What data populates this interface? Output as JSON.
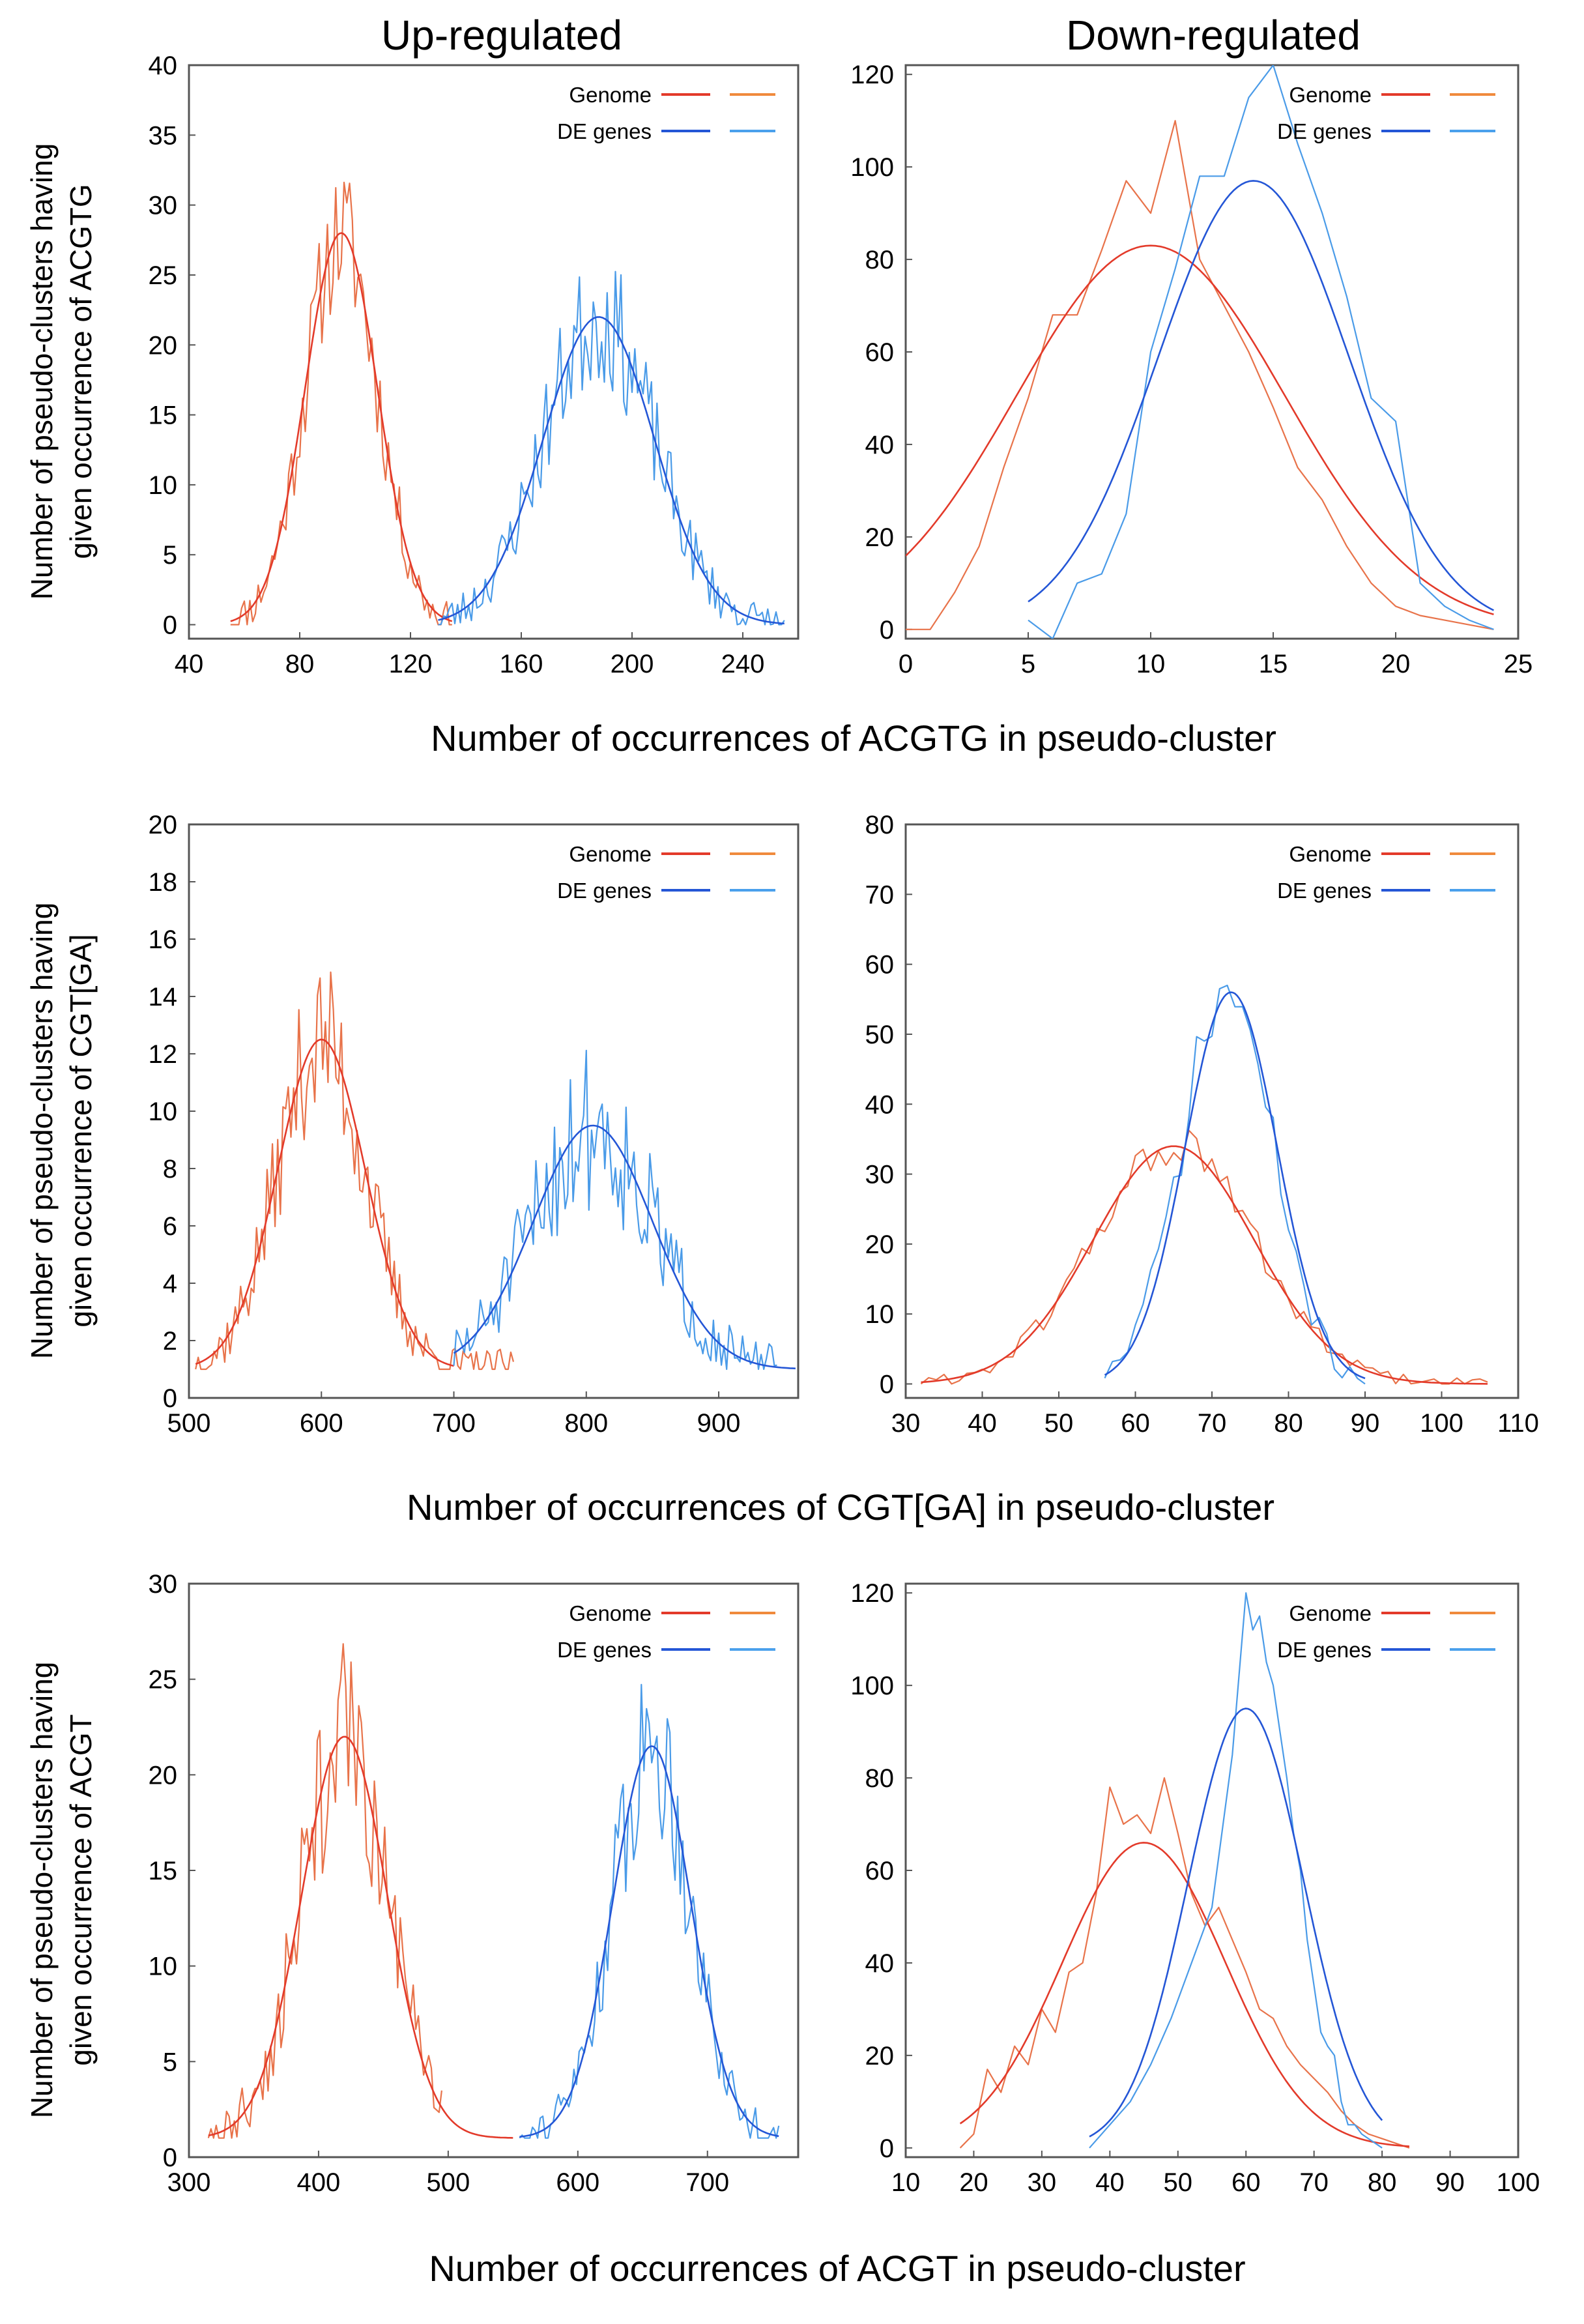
{
  "colors": {
    "genome_raw": "#e8734a",
    "genome_fit": "#e33a2a",
    "de_raw": "#4a9be8",
    "de_fit": "#2456d6",
    "legend_genome_left": "#e33a2a",
    "legend_genome_right": "#f08a3c",
    "legend_de_left": "#2456d6",
    "legend_de_right": "#4aa0ec"
  },
  "column_titles": [
    "Up-regulated",
    "Down-regulated"
  ],
  "chart_data": [
    {
      "type": "line",
      "row": 0,
      "col": 0,
      "xlim": [
        40,
        260
      ],
      "ylim": [
        -1,
        40
      ],
      "xticks": [
        40,
        80,
        120,
        160,
        200,
        240
      ],
      "yticks": [
        0,
        5,
        10,
        15,
        20,
        25,
        30,
        35,
        40
      ],
      "xlabel": "Number of occurrences of ACGTG in pseudo-cluster",
      "ylabel": [
        "Number of pseudo-clusters having",
        "given occurrence of ACGTG"
      ],
      "legend": [
        "Genome",
        "DE genes"
      ],
      "series": [
        {
          "name": "Genome",
          "kind": "noisy",
          "mean": 95,
          "sd": 13,
          "peak": 28,
          "start": 55,
          "end": 135,
          "step": 1,
          "noise": 5,
          "seed": 11
        },
        {
          "name": "Genome fit",
          "kind": "fit",
          "mean": 95,
          "sd": 13,
          "peak": 28,
          "start": 55,
          "end": 135
        },
        {
          "name": "DE genes",
          "kind": "noisy",
          "mean": 188,
          "sd": 20,
          "peak": 22,
          "start": 130,
          "end": 255,
          "step": 1,
          "noise": 5,
          "seed": 23
        },
        {
          "name": "DE genes fit",
          "kind": "fit",
          "mean": 188,
          "sd": 20,
          "peak": 22,
          "start": 130,
          "end": 255
        }
      ]
    },
    {
      "type": "line",
      "row": 0,
      "col": 1,
      "xlim": [
        0,
        25
      ],
      "ylim": [
        -2,
        122
      ],
      "xticks": [
        0,
        5,
        10,
        15,
        20,
        25
      ],
      "yticks": [
        0,
        20,
        40,
        60,
        80,
        100,
        120
      ],
      "xlabel": "Number of occurrences of ACGTG in pseudo-cluster",
      "ylabel": [],
      "legend": [
        "Genome",
        "DE genes"
      ],
      "series": [
        {
          "name": "Genome",
          "kind": "points",
          "x": [
            0,
            1,
            2,
            3,
            4,
            5,
            6,
            7,
            8,
            9,
            10,
            11,
            12,
            13,
            14,
            15,
            16,
            17,
            18,
            19,
            20,
            21,
            22,
            23,
            24
          ],
          "y": [
            0,
            0,
            8,
            18,
            35,
            50,
            68,
            68,
            82,
            97,
            90,
            110,
            80,
            70,
            60,
            48,
            35,
            28,
            18,
            10,
            5,
            3,
            2,
            1,
            0
          ]
        },
        {
          "name": "Genome fit",
          "kind": "fit",
          "mean": 10,
          "sd": 5.5,
          "peak": 83,
          "start": 0,
          "end": 24
        },
        {
          "name": "DE genes",
          "kind": "points",
          "x": [
            5,
            6,
            7,
            8,
            9,
            10,
            11,
            12,
            13,
            14,
            15,
            16,
            17,
            18,
            19,
            20,
            21,
            22,
            23,
            24
          ],
          "y": [
            2,
            -2,
            10,
            12,
            25,
            60,
            78,
            98,
            98,
            115,
            122,
            105,
            90,
            72,
            50,
            45,
            10,
            5,
            2,
            0
          ]
        },
        {
          "name": "DE genes fit",
          "kind": "fit",
          "mean": 14.2,
          "sd": 3.9,
          "peak": 97,
          "start": 5,
          "end": 24
        }
      ]
    },
    {
      "type": "line",
      "row": 1,
      "col": 0,
      "xlim": [
        500,
        960
      ],
      "ylim": [
        0,
        20
      ],
      "xticks": [
        500,
        600,
        700,
        800,
        900
      ],
      "yticks": [
        0,
        2,
        4,
        6,
        8,
        10,
        12,
        14,
        16,
        18,
        20
      ],
      "xlabel": "Number of occurrences of CGT[GA] in pseudo-cluster",
      "ylabel": [
        "Number of pseudo-clusters having",
        "given occurrence of CGT[GA]"
      ],
      "legend": [
        "Genome",
        "DE genes"
      ],
      "series": [
        {
          "name": "Genome",
          "kind": "noisy",
          "mean": 600,
          "sd": 33,
          "peak": 12.5,
          "start": 505,
          "end": 745,
          "step": 2,
          "noise": 2.8,
          "floor": 1,
          "seed": 37
        },
        {
          "name": "Genome fit",
          "kind": "fit",
          "mean": 600,
          "sd": 33,
          "peak": 12.5,
          "start": 505,
          "end": 700,
          "floor": 1
        },
        {
          "name": "DE genes",
          "kind": "noisy",
          "mean": 805,
          "sd": 45,
          "peak": 9.5,
          "start": 700,
          "end": 945,
          "step": 2,
          "noise": 3,
          "floor": 1,
          "seed": 51
        },
        {
          "name": "DE genes fit",
          "kind": "fit",
          "mean": 805,
          "sd": 45,
          "peak": 9.5,
          "start": 700,
          "end": 958,
          "floor": 1
        }
      ]
    },
    {
      "type": "line",
      "row": 1,
      "col": 1,
      "xlim": [
        30,
        110
      ],
      "ylim": [
        -2,
        80
      ],
      "xticks": [
        30,
        40,
        50,
        60,
        70,
        80,
        90,
        100,
        110
      ],
      "yticks": [
        0,
        10,
        20,
        30,
        40,
        50,
        60,
        70,
        80
      ],
      "xlabel": "Number of occurrences of CGT[GA] in pseudo-cluster",
      "ylabel": [],
      "legend": [
        "Genome",
        "DE genes"
      ],
      "series": [
        {
          "name": "Genome",
          "kind": "noisy",
          "mean": 65,
          "sd": 10.5,
          "peak": 34,
          "start": 32,
          "end": 106,
          "step": 1,
          "noise": 3.5,
          "seed": 61
        },
        {
          "name": "Genome fit",
          "kind": "fit",
          "mean": 65,
          "sd": 10.5,
          "peak": 34,
          "start": 32,
          "end": 106
        },
        {
          "name": "DE genes",
          "kind": "noisy",
          "mean": 72,
          "sd": 6,
          "peak": 56,
          "start": 56,
          "end": 90,
          "step": 1,
          "noise": 6,
          "seed": 71
        },
        {
          "name": "DE genes fit",
          "kind": "fit",
          "mean": 72.5,
          "sd": 6,
          "peak": 56,
          "start": 56,
          "end": 90
        }
      ]
    },
    {
      "type": "line",
      "row": 2,
      "col": 0,
      "xlim": [
        300,
        770
      ],
      "ylim": [
        0,
        30
      ],
      "xticks": [
        300,
        400,
        500,
        600,
        700
      ],
      "yticks": [
        0,
        5,
        10,
        15,
        20,
        25,
        30
      ],
      "xlabel": "Number of occurrences of ACGT in pseudo-cluster",
      "ylabel": [
        "Number of pseudo-clusters having",
        "given occurrence of ACGT"
      ],
      "legend": [
        "Genome",
        "DE genes"
      ],
      "series": [
        {
          "name": "Genome",
          "kind": "noisy",
          "mean": 420,
          "sd": 33,
          "peak": 22,
          "start": 315,
          "end": 495,
          "step": 2,
          "noise": 5,
          "floor": 1,
          "seed": 81
        },
        {
          "name": "Genome fit",
          "kind": "fit",
          "mean": 420,
          "sd": 33,
          "peak": 22,
          "start": 315,
          "end": 550,
          "floor": 1
        },
        {
          "name": "DE genes",
          "kind": "noisy",
          "mean": 657,
          "sd": 30,
          "peak": 21.5,
          "start": 555,
          "end": 755,
          "step": 2,
          "noise": 4.5,
          "floor": 1,
          "seed": 91
        },
        {
          "name": "DE genes fit",
          "kind": "fit",
          "mean": 657,
          "sd": 30,
          "peak": 21.5,
          "start": 555,
          "end": 755,
          "floor": 1
        }
      ]
    },
    {
      "type": "line",
      "row": 2,
      "col": 1,
      "xlim": [
        10,
        100
      ],
      "ylim": [
        -2,
        122
      ],
      "xticks": [
        10,
        20,
        30,
        40,
        50,
        60,
        70,
        80,
        90,
        100
      ],
      "yticks": [
        0,
        20,
        40,
        60,
        80,
        100,
        120
      ],
      "xlabel": "Number of occurrences of ACGT in pseudo-cluster",
      "ylabel": [],
      "legend": [
        "Genome",
        "DE genes"
      ],
      "series": [
        {
          "name": "Genome",
          "kind": "points",
          "x": [
            18,
            20,
            22,
            24,
            26,
            28,
            30,
            32,
            34,
            36,
            38,
            40,
            42,
            44,
            46,
            48,
            50,
            52,
            54,
            56,
            58,
            60,
            62,
            64,
            66,
            68,
            70,
            72,
            74,
            76,
            78,
            80,
            82,
            84
          ],
          "y": [
            0,
            3,
            17,
            12,
            22,
            18,
            30,
            25,
            38,
            40,
            55,
            78,
            70,
            72,
            68,
            80,
            68,
            55,
            48,
            52,
            45,
            38,
            30,
            28,
            22,
            18,
            15,
            12,
            8,
            5,
            3,
            2,
            1,
            0
          ]
        },
        {
          "name": "Genome fit",
          "kind": "fit",
          "mean": 45,
          "sd": 12,
          "peak": 66,
          "start": 18,
          "end": 84
        },
        {
          "name": "DE genes",
          "kind": "points",
          "x": [
            37,
            40,
            43,
            46,
            49,
            52,
            55,
            58,
            60,
            61,
            62,
            63,
            64,
            65,
            66,
            67,
            68,
            69,
            70,
            71,
            72,
            73,
            74,
            75,
            76,
            77,
            78,
            79,
            80
          ],
          "y": [
            0,
            5,
            10,
            18,
            28,
            40,
            52,
            85,
            120,
            112,
            115,
            105,
            100,
            90,
            80,
            68,
            60,
            45,
            35,
            25,
            22,
            20,
            10,
            5,
            5,
            3,
            2,
            1,
            0
          ]
        },
        {
          "name": "DE genes fit",
          "kind": "fit",
          "mean": 60,
          "sd": 8.5,
          "peak": 95,
          "start": 37,
          "end": 80
        }
      ]
    }
  ]
}
